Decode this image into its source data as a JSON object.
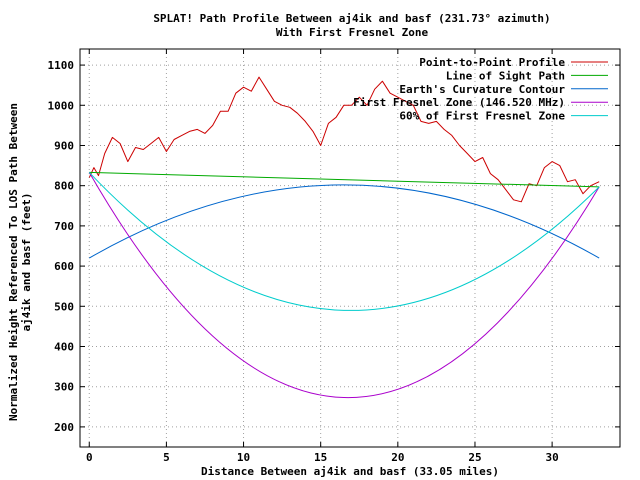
{
  "chart_data": {
    "type": "line",
    "title_line1": "SPLAT! Path Profile Between aj4ik and basf (231.73° azimuth)",
    "title_line2": "With First Fresnel Zone",
    "xlabel": "Distance Between aj4ik and basf (33.05 miles)",
    "ylabel_line1": "Normalized Height Referenced To LOS Path Between",
    "ylabel_line2": "aj4ik and basf (feet)",
    "xlim": [
      -0.6,
      34.4
    ],
    "ylim": [
      150,
      1140
    ],
    "x_ticks": [
      0,
      5,
      10,
      15,
      20,
      25,
      30
    ],
    "y_ticks": [
      200,
      300,
      400,
      500,
      600,
      700,
      800,
      900,
      1000,
      1100
    ],
    "grid": true,
    "legend_position": "top-right",
    "series": [
      {
        "name": "Point-to-Point Profile",
        "color": "#cc0000",
        "x": [
          0,
          0.3,
          0.6,
          1,
          1.5,
          2,
          2.5,
          3,
          3.5,
          4,
          4.5,
          5,
          5.5,
          6,
          6.5,
          7,
          7.5,
          8,
          8.5,
          9,
          9.5,
          10,
          10.5,
          11,
          11.5,
          12,
          12.5,
          13,
          13.5,
          14,
          14.5,
          15,
          15.5,
          16,
          16.5,
          17,
          17.5,
          18,
          18.5,
          19,
          19.5,
          20,
          20.5,
          21,
          21.5,
          22,
          22.5,
          23,
          23.5,
          24,
          24.5,
          25,
          25.5,
          26,
          26.5,
          27,
          27.5,
          28,
          28.5,
          29,
          29.5,
          30,
          30.5,
          31,
          31.5,
          32,
          32.5,
          33.05
        ],
        "y": [
          820,
          845,
          825,
          880,
          920,
          905,
          860,
          895,
          890,
          905,
          920,
          885,
          915,
          925,
          935,
          940,
          930,
          950,
          985,
          985,
          1030,
          1045,
          1035,
          1070,
          1040,
          1010,
          1000,
          995,
          980,
          960,
          935,
          900,
          955,
          970,
          1000,
          1000,
          1020,
          1000,
          1040,
          1060,
          1030,
          1020,
          1010,
          1000,
          960,
          955,
          960,
          940,
          925,
          900,
          880,
          860,
          870,
          830,
          815,
          790,
          765,
          760,
          805,
          800,
          845,
          860,
          850,
          810,
          815,
          780,
          800,
          810
        ]
      },
      {
        "name": "Line of Sight Path",
        "color": "#00aa00",
        "x": [
          0,
          33.05
        ],
        "y": [
          833,
          797
        ]
      },
      {
        "name": "Earth's Curvature Contour",
        "color": "#0066cc",
        "x": [
          0,
          16.5,
          33.05
        ],
        "y": [
          620,
          802,
          620
        ]
      },
      {
        "name": "First Fresnel Zone (146.520 MHz)",
        "color": "#aa00cc",
        "x": [
          0,
          16.5,
          33.05
        ],
        "y": [
          833,
          273,
          797
        ]
      },
      {
        "name": "60% of First Fresnel Zone",
        "color": "#00cccc",
        "x": [
          0,
          16.5,
          33.05
        ],
        "y": [
          833,
          490,
          797
        ]
      }
    ]
  }
}
